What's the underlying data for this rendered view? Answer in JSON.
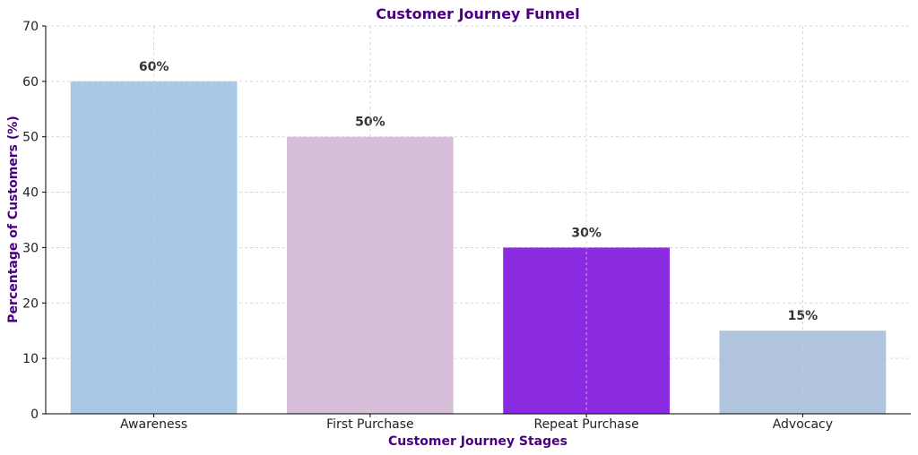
{
  "chart_data": {
    "type": "bar",
    "title": "Customer Journey Funnel",
    "xlabel": "Customer Journey Stages",
    "ylabel": "Percentage of Customers (%)",
    "categories": [
      "Awareness",
      "First Purchase",
      "Repeat Purchase",
      "Advocacy"
    ],
    "values": [
      60,
      50,
      30,
      15
    ],
    "value_labels": [
      "60%",
      "50%",
      "30%",
      "15%"
    ],
    "colors": [
      "#a8c8e6",
      "#d7bfd9",
      "#8a2be2",
      "#b0c4de"
    ],
    "ylim": [
      0,
      70
    ],
    "yticks": [
      0,
      10,
      20,
      30,
      40,
      50,
      60,
      70
    ],
    "grid": true,
    "title_color": "#4b0082",
    "label_color": "#4b0082"
  }
}
